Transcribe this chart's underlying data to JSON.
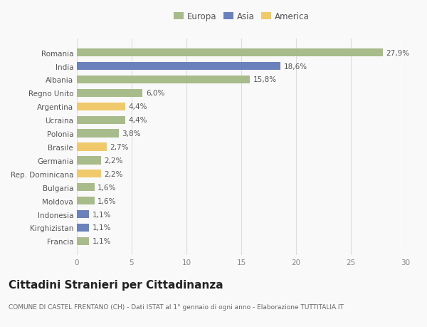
{
  "categories": [
    "Romania",
    "India",
    "Albania",
    "Regno Unito",
    "Argentina",
    "Ucraina",
    "Polonia",
    "Brasile",
    "Germania",
    "Rep. Dominicana",
    "Bulgaria",
    "Moldova",
    "Indonesia",
    "Kirghizistan",
    "Francia"
  ],
  "values": [
    27.9,
    18.6,
    15.8,
    6.0,
    4.4,
    4.4,
    3.8,
    2.7,
    2.2,
    2.2,
    1.6,
    1.6,
    1.1,
    1.1,
    1.1
  ],
  "labels": [
    "27,9%",
    "18,6%",
    "15,8%",
    "6,0%",
    "4,4%",
    "4,4%",
    "3,8%",
    "2,7%",
    "2,2%",
    "2,2%",
    "1,6%",
    "1,6%",
    "1,1%",
    "1,1%",
    "1,1%"
  ],
  "colors": [
    "#a8bb8a",
    "#6b81bc",
    "#a8bb8a",
    "#a8bb8a",
    "#f0c96a",
    "#a8bb8a",
    "#a8bb8a",
    "#f0c96a",
    "#a8bb8a",
    "#f0c96a",
    "#a8bb8a",
    "#a8bb8a",
    "#6b81bc",
    "#6b81bc",
    "#a8bb8a"
  ],
  "legend_labels": [
    "Europa",
    "Asia",
    "America"
  ],
  "legend_colors": [
    "#a8bb8a",
    "#6b81bc",
    "#f0c96a"
  ],
  "title": "Cittadini Stranieri per Cittadinanza",
  "subtitle": "COMUNE DI CASTEL FRENTANO (CH) - Dati ISTAT al 1° gennaio di ogni anno - Elaborazione TUTTITALIA.IT",
  "xlim": [
    0,
    30
  ],
  "xticks": [
    0,
    5,
    10,
    15,
    20,
    25,
    30
  ],
  "bg_color": "#f9f9f9",
  "grid_color": "#dddddd",
  "bar_height": 0.6,
  "label_fontsize": 7.5,
  "tick_fontsize": 7.5,
  "title_fontsize": 11,
  "subtitle_fontsize": 6.5
}
